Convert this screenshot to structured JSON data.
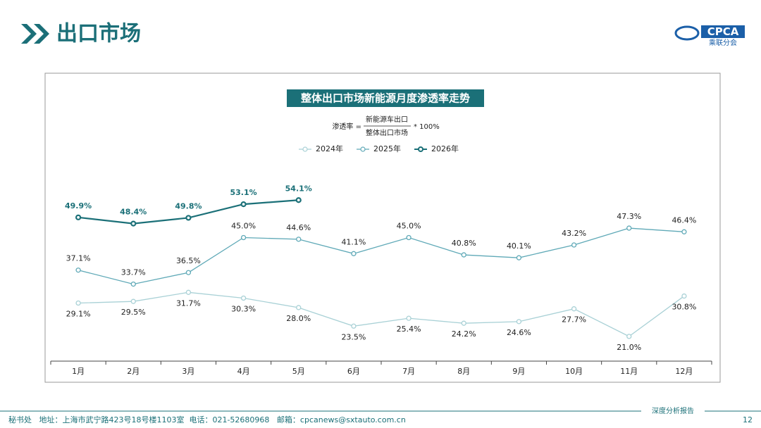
{
  "header": {
    "title": "出口市场",
    "logo_text": "CPCA",
    "logo_subtext": "乘联分会"
  },
  "footer": {
    "contact": "秘书处   地址：上海市武宁路423号18号楼1103室  电话：021-52680968   邮箱：cpcanews@sxtauto.com.cn",
    "report": "深度分析报告",
    "page": "12"
  },
  "chart_data": {
    "type": "line",
    "title": "整体出口市场新能源月度渗透率走势",
    "formula": {
      "left": "渗透率 =",
      "numerator": "新能源车出口",
      "denominator": "整体出口市场",
      "right": "* 100%"
    },
    "categories": [
      "1月",
      "2月",
      "3月",
      "4月",
      "5月",
      "6月",
      "7月",
      "8月",
      "9月",
      "10月",
      "11月",
      "12月"
    ],
    "ylim": [
      15,
      85
    ],
    "series": [
      {
        "name": "2024年",
        "color": "#a9d1d6",
        "values": [
          29.1,
          29.5,
          31.7,
          30.3,
          28.0,
          23.5,
          25.4,
          24.2,
          24.6,
          27.7,
          21.0,
          30.8
        ],
        "value_labels": [
          "29.1%",
          "29.5%",
          "31.7%",
          "30.3%",
          "28.0%",
          "23.5%",
          "25.4%",
          "24.2%",
          "24.6%",
          "27.7%",
          "21.0%",
          "30.8%"
        ]
      },
      {
        "name": "2025年",
        "color": "#5fa9b7",
        "values": [
          37.1,
          33.7,
          36.5,
          45.0,
          44.6,
          41.1,
          45.0,
          40.8,
          40.1,
          43.2,
          47.3,
          46.4
        ],
        "value_labels": [
          "37.1%",
          "33.7%",
          "36.5%",
          "45.0%",
          "44.6%",
          "41.1%",
          "45.0%",
          "40.8%",
          "40.1%",
          "43.2%",
          "47.3%",
          "46.4%"
        ]
      },
      {
        "name": "2026年",
        "color": "#1b7078",
        "values": [
          49.9,
          48.4,
          49.8,
          53.1,
          54.1,
          null,
          null,
          null,
          null,
          null,
          null,
          null
        ],
        "value_labels": [
          "49.9%",
          "48.4%",
          "49.8%",
          "53.1%",
          "54.1%",
          null,
          null,
          null,
          null,
          null,
          null,
          null
        ]
      }
    ]
  }
}
